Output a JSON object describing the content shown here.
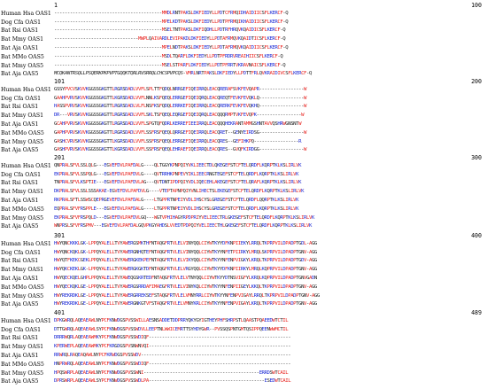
{
  "colors": {
    "red": "#e8231f",
    "blue": "#1f2dd6",
    "black": "#222222"
  },
  "labels": [
    "Human Hsa OAS1",
    "Dog Cfa OAS1",
    "Bat Rsi OAS1",
    "Bat Mmy OAS1",
    "Bat Aja OAS1",
    "Bat MMo OAS5",
    "Bat Mmy OAS5",
    "Bat Aja OAS5"
  ],
  "blocks": [
    {
      "start": "1",
      "end": "100",
      "rows": [
        "-----------------------------------------MMDLRNTPAKSLDKFIEDYLLPDTCFRMQIDHAIDIICSFLKERCF-Q",
        "-----------------------------------------MPELKDTPAKSLDKFIEDYLLPDTPFRMQIKHAIDIICSFLKERCF-Q",
        "-----------------------------------------MSELTNTPAKSLDKFIQDHLLPDTRFHRQVKQAIDICSFLKERCF-Q",
        "--------------------------------MWPLQAIVARDLEVIPAKDLDKFIEDYLLPDTAFRMQVKQAIDTICSFLKERCF-Q",
        "-----------------------------------------MPELNDTPAKSLDKFIEDYLLPDTAFRMQVKQAIDIICSFLKERCF-Q",
        "-----------------------------------------MSDLTQARFLDKFIEDYLLPDTPFRDRVREAIHIICSFLKERCF-Q",
        "-----------------------------------------MSELSTPARFLDKFIEDYLLPDTPFRRTVKRAVNAICSFLKERCF-Q",
        "MCQKANTRSQLLPSQERKPKPVPTGQQKTQRLRVSRRQLCHCSPVPCQS-VMRLNRTPAKSLDKFIEDYLLPDTTFRLQVKRAIDIVCSFLKERCF-Q"
      ]
    },
    {
      "start": "101",
      "end": "200",
      "rows": [
        "GSSYPVCVSKVVKGGSSGKGTTLRGRSDADLVVFLSPLTTFQDQLNRRGEFIQEIRRQLEACQRERAFSVKFEVQAPR-----------------W",
        "GAAHPVRVSKVVKGGSSGKGTTLKGRSDADLVVFLNNLKSFQEQLERRGEFIQEIQRQLEACQREQTFEVKFEVQKLQ-----------------W",
        "HASSPVRVSKVVKGGSSGKGTTLRGRSDADLVLFLNSFKSFQDQLERRKEFIQEIRRQLEACQRERKFEVKFEVQKHQ-----------------W",
        "DR---VRVSKVVKGGSSGKGTTLRGRSDADLVVFLSKLTSFQEQLEQRGEFIQEIQRQLEACQQQRMPTVKFEVQPK-----------------W",
        "GCAHPVRVSKVVKGGSSGKGTTLRGRSDADLVVFLSPGTQFQDRLKERREFIEEIRRQLEACQQQHEKRANTAMMGSHNTAVVQSHRWGNSNTW",
        "GAPHPVRVSKVVKGGSSGKGTTLRGRSDADLVVFLSSFRSFQEQLQRRGEFIQEIRRQLEACQRET--GENYEIRDSG-----------------W",
        "GASHCVRVSKVVKGGSSGKGTTLKGRSDADLVVFLSSFRSFQEQLERRGEFIQEIRRQLEACQRES--GEFIHKPQ-----------------R",
        "GASHPVRVSKVVKGGSSGKGTTLKGRSDADLVVFLSSFRSFQEQLEHRAEFIQEIRRQLEACQRES--GVQFKIRDGG-----------------W"
      ]
    },
    {
      "start": "201",
      "end": "300",
      "rows": [
        "QNPRALSFVLSSLQLG---EGVEFDVLPAFDALG----QLTGGYKPNPQIYVKLIEECTDLQKEGEFSTCFTELQRDFLKQRPTKLKSLIRLVK",
        "EKPRALSFVLSSPQLG---EGVEFDVLPAFDVLG----QVTRRHKPNPEVYIKLIEECRNGTEGEFSTCFTELQRDFLKQRPTKLKSLIRLVK",
        "TNPRALSFVLKSPTIE---EGVEFDVLPAFDVLAG---QVTDNTIPDPQIYVDLIQECEHLAKEGEFSTCFTELQRAFLKQRPTKLKSLIRLVK",
        "DKPRALSFVLSSLSSSAKAE-EGVEFDVLPAFDVLG----VTEPTAPNPQIYVNLIHECTSLEKEGEFSTCFTELQRDFLKQRPTKLKSLIRLVK",
        "RKPRALSFTLSSWSCQEPRGEVEFDVLPAFDALG----LTGPPRTNPEIYVDLIHSCYSLGREGEFSTCFTELQRDFLQQRPTKLKSLIRLVK",
        "EQPRALSFVFRSPPLE---EGVEFDVLPAFDALG----LTGPPRTNPEIYVDLIHSCYSLGREGEFSTCFTELQRDFLKQRPTKLKSLIRLVK",
        "EKPRALSFVFRSPQLD---EGVEFDVLPAFDVLGQ---WGTVPHIHAGYRPDPRIYVELIEECTRLGKEGEFSTCFTELQRDFLKQRPTKLKSLIRLVK",
        "WNPRSLSFVFRSPMV---EGVEFDVLPAFDALGQVPKGYAHDSLVVEDTPDPQIYVELIEECTHLGKEGEFSTCFTELQRDFLKQRPTKLKSLIRLVK"
      ]
    },
    {
      "start": "301",
      "end": "400",
      "rows": [
        "HWYQNCKKKLGK-LPPQYALELLTVYAWERGSMKTHFNTAQGFRTVLELVINYQQLCIYWTKYYDFKNPIIEKYLRRQLTKPRPVILDPADPTGDL-AGG",
        "HWYQNCKQKLGK-LPPQYALELLTVYAWERGNHQTEFNTAQGFRTVLELVINYQQLCIYWTKYYNFETPIIRKYLMRQLSKPRPVILDPADPTGNV-AGG",
        "HWYQTFKEKCGEKLPPQYALELLTVYAWERGKEKPEFNTAQGFRTVLELVIKYQQLCIYWTKYYNFENPVIGKYLKRQLTKPRPVILDPADPTGDV-AGG",
        "HWYQKCKEKLGK-LPPQYALELLTVYAWERGKGKTDFNTAQGFRTVLELVRGYQQLCIYWTKYYDFKNPIIRKYLMRQLKQPRPVILDPADPTGNV-AGG",
        "HWYQECKQELGHPLPPQYALELLTVYAWEQGSKRTEDFNTAQGFRTVLELVTNYQQLCIYWTKYYDTNSVIGFYLKRQLKQPRPVILDPADPTGNVGADN",
        "HWYQECKQKLGE-LPPQYALELLTVYAWERGSRRDAFIMAEGFRTVLELVINYKQLCIYWTKYYNFENPIIGEYLKKQLTKPRPVILDPADPTGNV-AGG",
        "HWYREKRDKLGE-LPPQYALELLTVYAWERGRREKSEFSTAQGFRTVLELVMNYRRLCIYWTKYYNFENPVIGAYLRRQLTKPRPVILDPADPTGNV-AGG",
        "HWYREKRDKLGE-LPPQYALELLTVYAWERGNKGTVFSTAQGFRTVLELVMNYKRLCIYWTKYYNFENPVIGAYLKRQLTKPRPVILDPADPTGNV-AGG"
      ]
    },
    {
      "start": "401",
      "end": "489",
      "rows": [
        "DPKGWRQLAQEAEAWLNYPCFKNWDGSPVSSWILLAESNSADDETDDPRRYQKYGYIGTHEYPHFSHRPSTLQAASTPQAEEDWTCTIL",
        "DTTGWRQLAQEAEAWLSYPCFKNWDGSPVSSWDVLLEEPTNLWWICEMRTTSYHDYGWR--PVSSQSPNTGMTQSIPPQEENWWMCTIL",
        "DRRRWQRLAQEAEAWMKYPCFKNWDGSPVSSWDIQF------------------------------------------------------",
        "KPERWEPLAQEAEAWMKYPCFKRGDGSPVSNWNVQI------------------------------------------------------",
        "RRWRQLRAQEAQAWLNYPCFKRWDGSPVSSWDV---------------------------------------------------------",
        "HNPRWRQLAQEAEAWLNYPCFKNWDGSPVSSWDIQF------------------------------------------------------",
        "HPQSWRPLAQEAEAWLNYPCFKNWDGSPVSSWNI--------------------------------------------ERRDSWTCAIL",
        "DPRSWRPLAQEAEAWLSYPCFKNWDGSPVSSWDLPA--------------------------------------------ESEDWTCAIL"
      ]
    }
  ]
}
